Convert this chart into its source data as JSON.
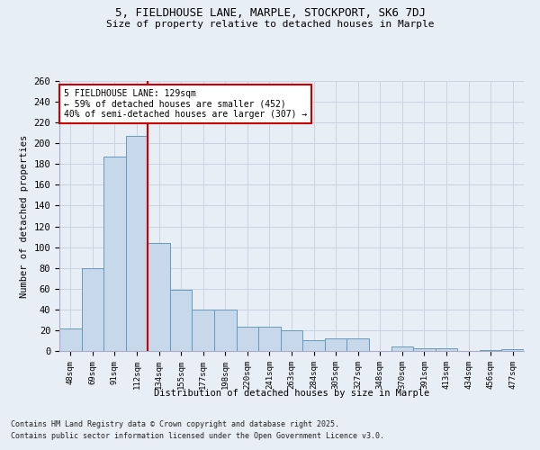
{
  "title_line1": "5, FIELDHOUSE LANE, MARPLE, STOCKPORT, SK6 7DJ",
  "title_line2": "Size of property relative to detached houses in Marple",
  "xlabel": "Distribution of detached houses by size in Marple",
  "ylabel": "Number of detached properties",
  "bar_labels": [
    "48sqm",
    "69sqm",
    "91sqm",
    "112sqm",
    "134sqm",
    "155sqm",
    "177sqm",
    "198sqm",
    "220sqm",
    "241sqm",
    "263sqm",
    "284sqm",
    "305sqm",
    "327sqm",
    "348sqm",
    "370sqm",
    "391sqm",
    "413sqm",
    "434sqm",
    "456sqm",
    "477sqm"
  ],
  "bar_values": [
    22,
    80,
    187,
    207,
    104,
    59,
    40,
    40,
    23,
    23,
    20,
    10,
    12,
    12,
    0,
    4,
    3,
    3,
    0,
    1,
    2
  ],
  "bar_color": "#c8d8eb",
  "bar_edge_color": "#6699bb",
  "vline_color": "#cc0000",
  "annotation_text": "5 FIELDHOUSE LANE: 129sqm\n← 59% of detached houses are smaller (452)\n40% of semi-detached houses are larger (307) →",
  "annotation_box_color": "#ffffff",
  "annotation_box_edge": "#cc0000",
  "grid_color": "#c8d4e0",
  "background_color": "#e8eef5",
  "ylim": [
    0,
    260
  ],
  "yticks": [
    0,
    20,
    40,
    60,
    80,
    100,
    120,
    140,
    160,
    180,
    200,
    220,
    240,
    260
  ],
  "vline_x_index": 3.5,
  "footnote_line1": "Contains HM Land Registry data © Crown copyright and database right 2025.",
  "footnote_line2": "Contains public sector information licensed under the Open Government Licence v3.0."
}
